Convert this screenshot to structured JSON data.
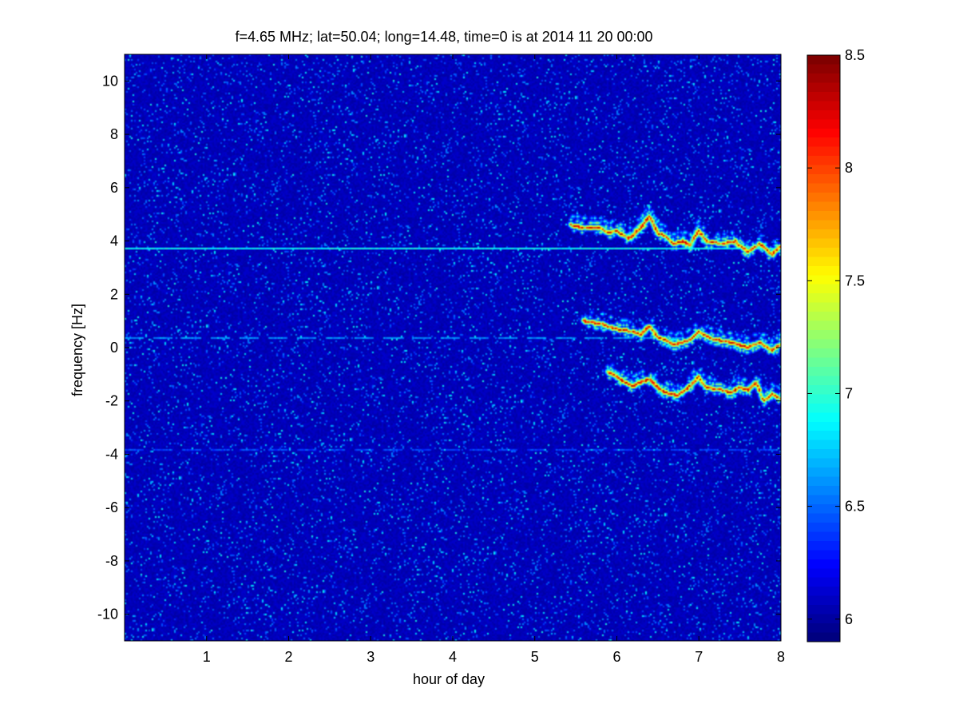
{
  "chart_data": {
    "type": "heatmap",
    "title": "f=4.65 MHz;  lat=50.04; long=14.48, time=0 is at 2014 11 20 00:00",
    "xlabel": "hour of day",
    "ylabel": "frequency [Hz]",
    "xlim": [
      0,
      8
    ],
    "ylim": [
      -11,
      11
    ],
    "xticks": [
      "1",
      "2",
      "3",
      "4",
      "5",
      "6",
      "7",
      "8"
    ],
    "yticks": [
      "-10",
      "-8",
      "-6",
      "-4",
      "-2",
      "0",
      "2",
      "4",
      "6",
      "8",
      "10"
    ],
    "colorbar": {
      "range": [
        5.9,
        8.5
      ],
      "ticks": [
        "6",
        "6.5",
        "7",
        "7.5",
        "8",
        "8.5"
      ],
      "colormap": "jet"
    },
    "background_level": 6.05,
    "features": [
      {
        "kind": "constant-line",
        "y": 3.75,
        "x_range": [
          0,
          8
        ],
        "level": 6.9
      },
      {
        "kind": "dashed-line",
        "y": 0.35,
        "x_range": [
          0,
          6.8
        ],
        "level": 6.6
      },
      {
        "kind": "dashed-line",
        "y": -3.85,
        "x_range": [
          0,
          8
        ],
        "level": 6.4
      },
      {
        "kind": "doppler-trace",
        "label": "upper",
        "points": [
          [
            5.45,
            4.6
          ],
          [
            5.6,
            4.5
          ],
          [
            5.8,
            4.5
          ],
          [
            5.9,
            4.3
          ],
          [
            6.0,
            4.4
          ],
          [
            6.15,
            4.1
          ],
          [
            6.3,
            4.5
          ],
          [
            6.4,
            4.9
          ],
          [
            6.5,
            4.3
          ],
          [
            6.6,
            4.2
          ],
          [
            6.7,
            3.9
          ],
          [
            6.8,
            4.0
          ],
          [
            6.9,
            3.85
          ],
          [
            7.0,
            4.4
          ],
          [
            7.1,
            4.0
          ],
          [
            7.3,
            3.9
          ],
          [
            7.45,
            4.0
          ],
          [
            7.6,
            3.6
          ],
          [
            7.75,
            3.9
          ],
          [
            7.9,
            3.5
          ],
          [
            8.0,
            3.8
          ]
        ]
      },
      {
        "kind": "doppler-trace",
        "label": "middle",
        "points": [
          [
            5.6,
            1.0
          ],
          [
            5.8,
            0.9
          ],
          [
            6.0,
            0.7
          ],
          [
            6.2,
            0.6
          ],
          [
            6.3,
            0.5
          ],
          [
            6.4,
            0.8
          ],
          [
            6.5,
            0.4
          ],
          [
            6.6,
            0.3
          ],
          [
            6.7,
            0.1
          ],
          [
            6.8,
            0.2
          ],
          [
            6.9,
            0.3
          ],
          [
            7.0,
            0.6
          ],
          [
            7.2,
            0.3
          ],
          [
            7.4,
            0.2
          ],
          [
            7.6,
            0.0
          ],
          [
            7.75,
            0.2
          ],
          [
            7.9,
            -0.1
          ],
          [
            8.0,
            0.1
          ]
        ]
      },
      {
        "kind": "doppler-trace",
        "label": "lower",
        "points": [
          [
            5.9,
            -0.9
          ],
          [
            6.0,
            -1.1
          ],
          [
            6.1,
            -1.3
          ],
          [
            6.2,
            -1.45
          ],
          [
            6.3,
            -1.3
          ],
          [
            6.4,
            -1.2
          ],
          [
            6.5,
            -1.5
          ],
          [
            6.6,
            -1.7
          ],
          [
            6.75,
            -1.8
          ],
          [
            6.9,
            -1.45
          ],
          [
            7.0,
            -1.1
          ],
          [
            7.1,
            -1.5
          ],
          [
            7.3,
            -1.6
          ],
          [
            7.4,
            -1.7
          ],
          [
            7.5,
            -1.5
          ],
          [
            7.6,
            -1.6
          ],
          [
            7.7,
            -1.3
          ],
          [
            7.8,
            -2.0
          ],
          [
            7.9,
            -1.75
          ],
          [
            8.0,
            -1.9
          ]
        ]
      }
    ]
  }
}
